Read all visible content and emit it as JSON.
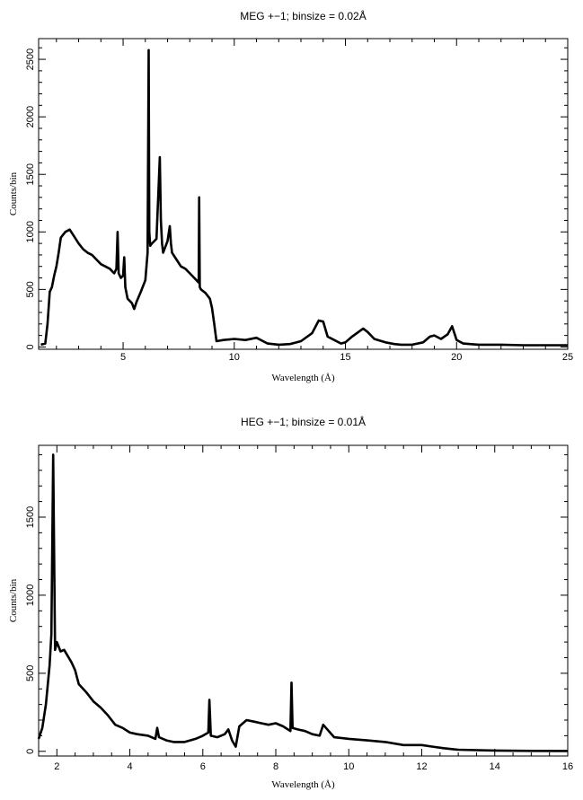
{
  "chart_data": [
    {
      "type": "line",
      "title": "MEG +−1; binsize = 0.02Å",
      "xlabel": "Wavelength (Å)",
      "ylabel": "Counts/bin",
      "xlim": [
        1.2,
        25
      ],
      "ylim": [
        -20,
        2680
      ],
      "xticks": [
        5,
        10,
        15,
        20,
        25
      ],
      "yticks": [
        0,
        500,
        1000,
        1500,
        2000,
        2500
      ],
      "grid": false,
      "series": [
        {
          "x": [
            1.3,
            1.5,
            1.6,
            1.7,
            1.8,
            1.9,
            2.0,
            2.1,
            2.2,
            2.4,
            2.6,
            2.8,
            3.0,
            3.2,
            3.4,
            3.6,
            3.8,
            4.0,
            4.2,
            4.4,
            4.6,
            4.7,
            4.75,
            4.8,
            4.9,
            5.0,
            5.05,
            5.1,
            5.2,
            5.4,
            5.5,
            5.6,
            5.8,
            6.0,
            6.1,
            6.15,
            6.18,
            6.22,
            6.3,
            6.5,
            6.65,
            6.7,
            6.75,
            6.8,
            7.0,
            7.1,
            7.15,
            7.2,
            7.4,
            7.6,
            7.8,
            8.0,
            8.2,
            8.4,
            8.42,
            8.45,
            8.5,
            8.7,
            8.9,
            9.0,
            9.1,
            9.2,
            9.5,
            10.0,
            10.5,
            11.0,
            11.5,
            12.0,
            12.5,
            13.0,
            13.5,
            13.8,
            14.0,
            14.2,
            14.5,
            14.8,
            15.0,
            15.3,
            15.8,
            16.0,
            16.3,
            16.8,
            17.2,
            17.5,
            18.0,
            18.5,
            18.8,
            19.0,
            19.3,
            19.6,
            19.8,
            20.0,
            20.3,
            20.6,
            21.0,
            22.0,
            23.0,
            24.0,
            25.0
          ],
          "y": [
            20,
            30,
            200,
            480,
            520,
            620,
            700,
            820,
            950,
            1000,
            1020,
            960,
            900,
            850,
            820,
            800,
            760,
            720,
            700,
            680,
            640,
            680,
            1000,
            640,
            600,
            620,
            780,
            520,
            420,
            380,
            330,
            390,
            480,
            580,
            820,
            2580,
            1000,
            880,
            900,
            940,
            1650,
            1100,
            900,
            820,
            920,
            1050,
            900,
            820,
            760,
            700,
            680,
            640,
            600,
            560,
            1300,
            520,
            500,
            470,
            420,
            340,
            200,
            50,
            60,
            70,
            60,
            80,
            30,
            20,
            25,
            50,
            120,
            230,
            220,
            90,
            60,
            30,
            40,
            90,
            160,
            130,
            70,
            40,
            25,
            20,
            20,
            40,
            90,
            100,
            70,
            110,
            180,
            60,
            30,
            25,
            20,
            20,
            15,
            15,
            15
          ]
        }
      ]
    },
    {
      "type": "line",
      "title": "HEG +−1; binsize = 0.01Å",
      "xlabel": "Wavelength (Å)",
      "ylabel": "Counts/bin",
      "xlim": [
        1.5,
        16
      ],
      "ylim": [
        -30,
        1960
      ],
      "xticks": [
        2,
        4,
        6,
        8,
        10,
        12,
        14,
        16
      ],
      "yticks": [
        0,
        500,
        1000,
        1500
      ],
      "grid": false,
      "series": [
        {
          "x": [
            1.5,
            1.6,
            1.7,
            1.8,
            1.85,
            1.9,
            1.95,
            2.0,
            2.1,
            2.2,
            2.4,
            2.5,
            2.6,
            2.8,
            3.0,
            3.2,
            3.4,
            3.6,
            3.8,
            4.0,
            4.2,
            4.5,
            4.7,
            4.75,
            4.8,
            5.0,
            5.2,
            5.5,
            5.8,
            6.0,
            6.15,
            6.18,
            6.22,
            6.4,
            6.6,
            6.7,
            6.8,
            6.9,
            7.0,
            7.2,
            7.4,
            7.6,
            7.8,
            8.0,
            8.2,
            8.4,
            8.43,
            8.46,
            8.6,
            8.8,
            9.0,
            9.2,
            9.3,
            9.6,
            10.0,
            10.5,
            11.0,
            11.5,
            12.0,
            12.3,
            12.6,
            13.0,
            14.0,
            15.0,
            16.0
          ],
          "y": [
            80,
            150,
            300,
            550,
            750,
            1900,
            650,
            700,
            640,
            650,
            570,
            520,
            430,
            380,
            320,
            280,
            230,
            170,
            150,
            120,
            110,
            100,
            80,
            150,
            90,
            70,
            60,
            60,
            80,
            100,
            120,
            330,
            100,
            90,
            110,
            140,
            70,
            30,
            160,
            200,
            190,
            180,
            170,
            180,
            160,
            130,
            440,
            150,
            140,
            130,
            110,
            100,
            170,
            90,
            80,
            70,
            60,
            40,
            40,
            30,
            20,
            10,
            5,
            3,
            2
          ]
        }
      ]
    }
  ]
}
